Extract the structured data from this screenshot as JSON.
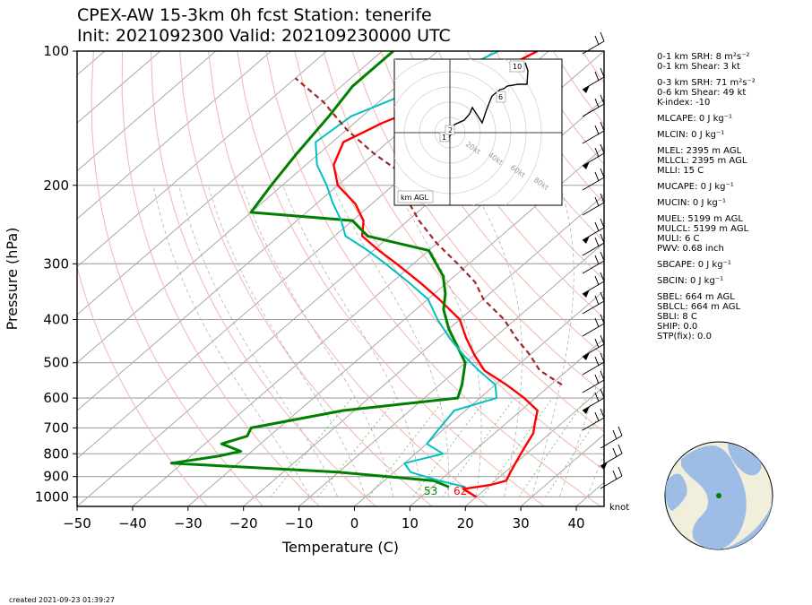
{
  "title_line1": "CPEX-AW 15-3km  0h fcst  Station: tenerife",
  "title_line2": "Init: 2021092300  Valid: 202109230000 UTC",
  "footer": "created 2021-09-23 01:39:27",
  "colors": {
    "temperature": "#ff0000",
    "dewpoint": "#008000",
    "virtual_temperature": "#00c0c0",
    "parcel": "#a02828"
  },
  "chart_data": [
    {
      "type": "line",
      "subtype": "skew-T log-p diagram",
      "xlabel": "Temperature (C)",
      "ylabel": "Pressure (hPa)",
      "xlim": [
        -50,
        45
      ],
      "ylim": [
        1050,
        100
      ],
      "yscale": "log",
      "xticks": [
        "−50",
        "−40",
        "−30",
        "−20",
        "−10",
        "0",
        "10",
        "20",
        "30",
        "40"
      ],
      "yticks": [
        "100",
        "200",
        "300",
        "400",
        "500",
        "600",
        "700",
        "800",
        "900",
        "1000"
      ],
      "surface_labels": {
        "dewpoint": "53",
        "temperature": "62"
      },
      "wind_unit": "knot",
      "series": [
        {
          "name": "Temperature",
          "points": [
            [
              20,
              1000
            ],
            [
              16,
              960
            ],
            [
              20,
              940
            ],
            [
              22,
              920
            ],
            [
              21,
              880
            ],
            [
              20,
              840
            ],
            [
              19,
              800
            ],
            [
              18,
              760
            ],
            [
              17,
              720
            ],
            [
              15,
              680
            ],
            [
              13,
              640
            ],
            [
              8,
              600
            ],
            [
              2,
              560
            ],
            [
              -5,
              520
            ],
            [
              -10,
              480
            ],
            [
              -15,
              440
            ],
            [
              -20,
              400
            ],
            [
              -28,
              360
            ],
            [
              -35,
              330
            ],
            [
              -43,
              300
            ],
            [
              -49,
              280
            ],
            [
              -55,
              260
            ],
            [
              -58,
              240
            ],
            [
              -63,
              220
            ],
            [
              -70,
              200
            ],
            [
              -75,
              180
            ],
            [
              -78,
              160
            ],
            [
              -75,
              145
            ],
            [
              -70,
              130
            ],
            [
              -66,
              115
            ],
            [
              -62,
              100
            ]
          ]
        },
        {
          "name": "Dewpoint",
          "points": [
            [
              13,
              950
            ],
            [
              9,
              920
            ],
            [
              -10,
              880
            ],
            [
              -42,
              840
            ],
            [
              -35,
              810
            ],
            [
              -32,
              790
            ],
            [
              -37,
              760
            ],
            [
              -34,
              730
            ],
            [
              -35,
              700
            ],
            [
              -22,
              640
            ],
            [
              -4,
              600
            ],
            [
              -6,
              560
            ],
            [
              -10,
              500
            ],
            [
              -20,
              420
            ],
            [
              -25,
              380
            ],
            [
              -28,
              350
            ],
            [
              -32,
              320
            ],
            [
              -40,
              280
            ],
            [
              -54,
              260
            ],
            [
              -60,
              240
            ],
            [
              -80,
              230
            ],
            [
              -82,
              200
            ],
            [
              -84,
              170
            ],
            [
              -86,
              140
            ],
            [
              -88,
              120
            ],
            [
              -88,
              100
            ]
          ]
        },
        {
          "name": "Virtual temperature",
          "points": [
            [
              16,
              950
            ],
            [
              10,
              920
            ],
            [
              3,
              880
            ],
            [
              0,
              840
            ],
            [
              5,
              800
            ],
            [
              0,
              760
            ],
            [
              -1,
              700
            ],
            [
              -2,
              640
            ],
            [
              3,
              600
            ],
            [
              0,
              560
            ],
            [
              -6,
              520
            ],
            [
              -12,
              480
            ],
            [
              -18,
              440
            ],
            [
              -24,
              400
            ],
            [
              -30,
              360
            ],
            [
              -37,
              330
            ],
            [
              -45,
              300
            ],
            [
              -51,
              280
            ],
            [
              -58,
              260
            ],
            [
              -62,
              240
            ],
            [
              -67,
              220
            ],
            [
              -72,
              200
            ],
            [
              -78,
              180
            ],
            [
              -83,
              160
            ],
            [
              -82,
              140
            ],
            [
              -75,
              120
            ],
            [
              -69,
              100
            ]
          ]
        },
        {
          "name": "Parcel",
          "points": [
            [
              12,
              560
            ],
            [
              5,
              520
            ],
            [
              0,
              480
            ],
            [
              -6,
              440
            ],
            [
              -12,
              400
            ],
            [
              -20,
              360
            ],
            [
              -25,
              330
            ],
            [
              -32,
              300
            ],
            [
              -40,
              270
            ],
            [
              -48,
              240
            ],
            [
              -56,
              210
            ],
            [
              -60,
              190
            ],
            [
              -70,
              170
            ],
            [
              -80,
              150
            ],
            [
              -90,
              130
            ],
            [
              -100,
              115
            ]
          ]
        }
      ]
    },
    {
      "type": "line",
      "subtype": "hodograph",
      "ring_labels": [
        "20kt",
        "40kt",
        "60kt",
        "80kt"
      ],
      "height_labels": [
        "1",
        "2",
        "6",
        "10"
      ],
      "legend": "km AGL"
    }
  ],
  "indices": [
    "0-1 km SRH: 8 m²s⁻²",
    "0-1 km Shear: 3 kt",
    "0-3 km SRH: 71 m²s⁻²",
    "0-6 km Shear: 49 kt",
    "K-index: -10",
    "MLCAPE: 0 J kg⁻¹",
    "MLCIN: 0 J kg⁻¹",
    "MLEL: 2395 m AGL",
    "MLLCL: 2395 m AGL",
    "MLLI: 15 C",
    "MUCAPE: 0 J kg⁻¹",
    "MUCIN: 0 J kg⁻¹",
    "MUEL: 5199 m AGL",
    "MULCL: 5199 m AGL",
    "MULI: 6 C",
    "PWV: 0.68 inch",
    "SBCAPE: 0 J kg⁻¹",
    "SBCIN: 0 J kg⁻¹",
    "SBEL: 664 m AGL",
    "SBLCL: 664 m AGL",
    "SBLI: 8 C",
    "SHIP: 0.0",
    "STP(fix): 0.0"
  ]
}
